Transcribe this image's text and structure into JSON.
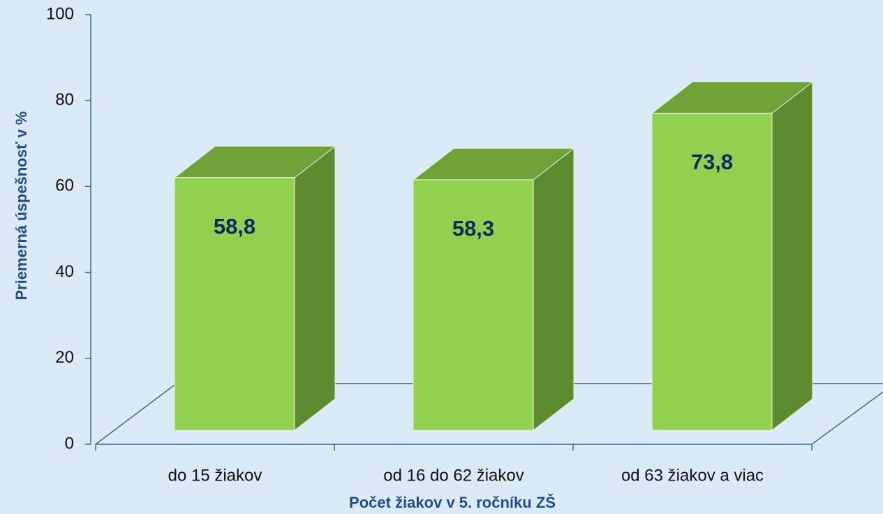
{
  "chart_data": {
    "type": "bar3d",
    "x_label": "Počet žiakov v 5. ročníku ZŠ",
    "y_label": "Priemerná úspešnosť v %",
    "categories": [
      "do 15 žiakov",
      "od 16 do 62 žiakov",
      "od 63 žiakov a viac"
    ],
    "values": [
      58.8,
      58.3,
      73.8
    ],
    "value_labels": [
      "58,8",
      "58,3",
      "73,8"
    ],
    "color": "#92d050",
    "ylim": [
      0,
      100
    ],
    "yticks": [
      0,
      20,
      40,
      60,
      80,
      100
    ]
  }
}
